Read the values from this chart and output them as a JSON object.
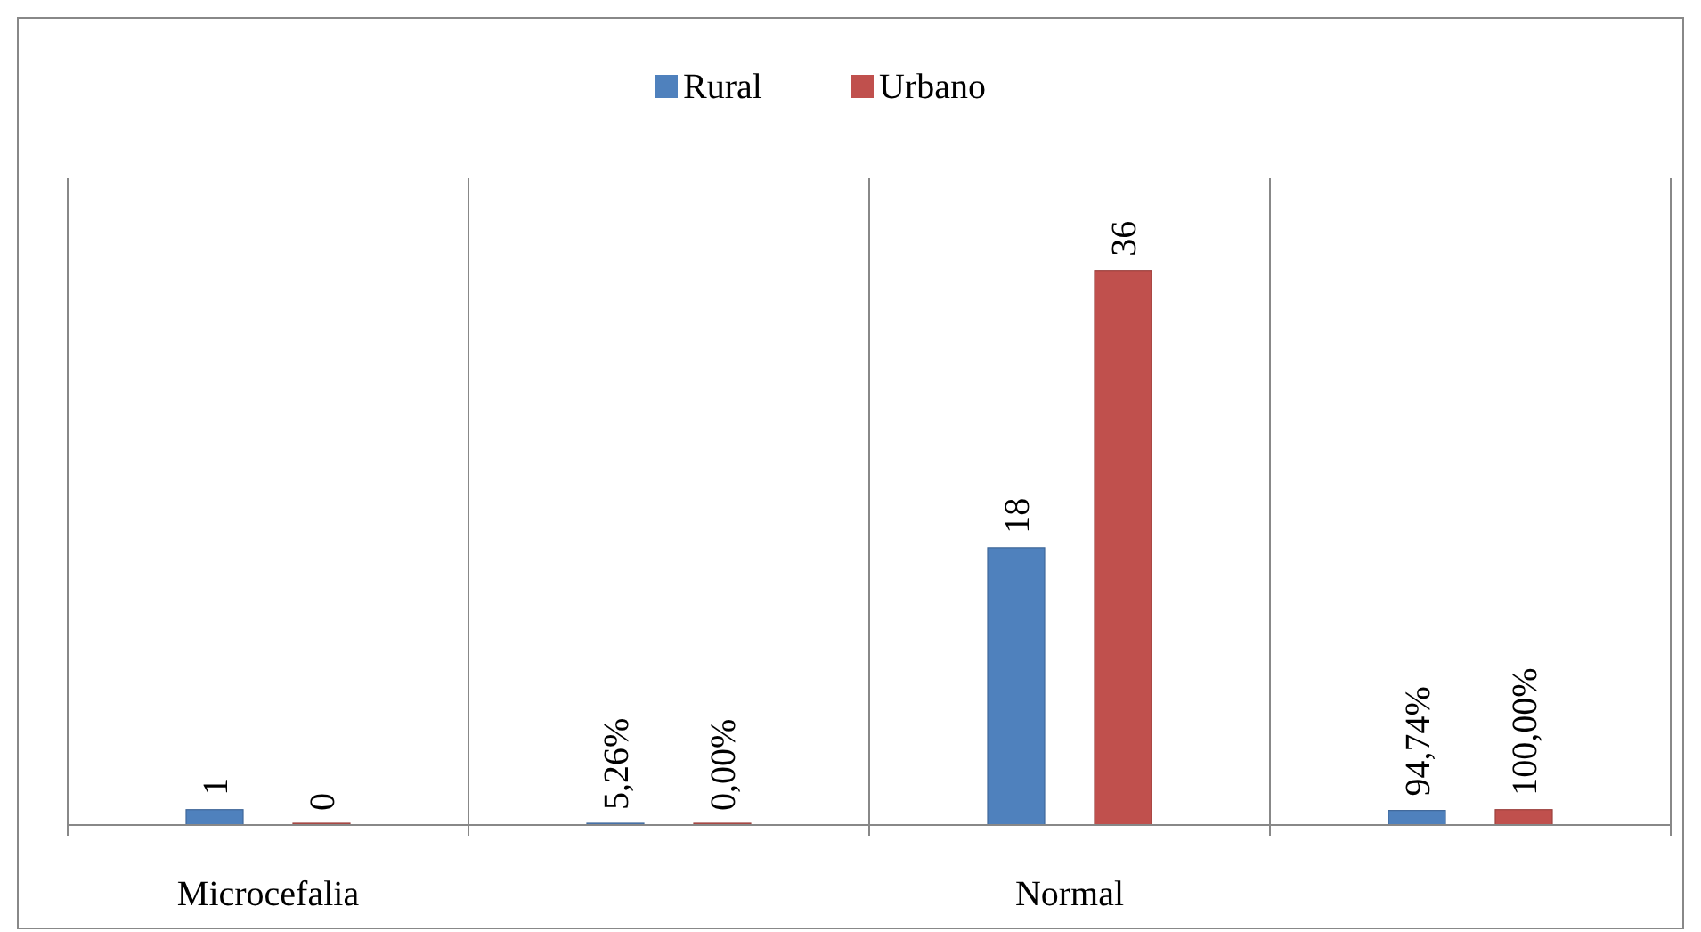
{
  "chart_data": {
    "type": "bar",
    "categories": [
      "Microcefalia",
      null,
      "Normal",
      null
    ],
    "series": [
      {
        "name": "Rural",
        "color": "#4f81bd",
        "values": [
          1,
          0.0526,
          18,
          0.9474
        ],
        "value_labels": [
          "1",
          "5,26%",
          "18",
          "94,74%"
        ]
      },
      {
        "name": "Urbano",
        "color": "#c0504d",
        "values": [
          0,
          0,
          36,
          1
        ],
        "value_labels": [
          "0",
          "0,00%",
          "36",
          "100,00%"
        ]
      }
    ],
    "ylim": [
      0,
      42
    ],
    "tick_labels": "x",
    "grid": "x",
    "legend": "top"
  }
}
